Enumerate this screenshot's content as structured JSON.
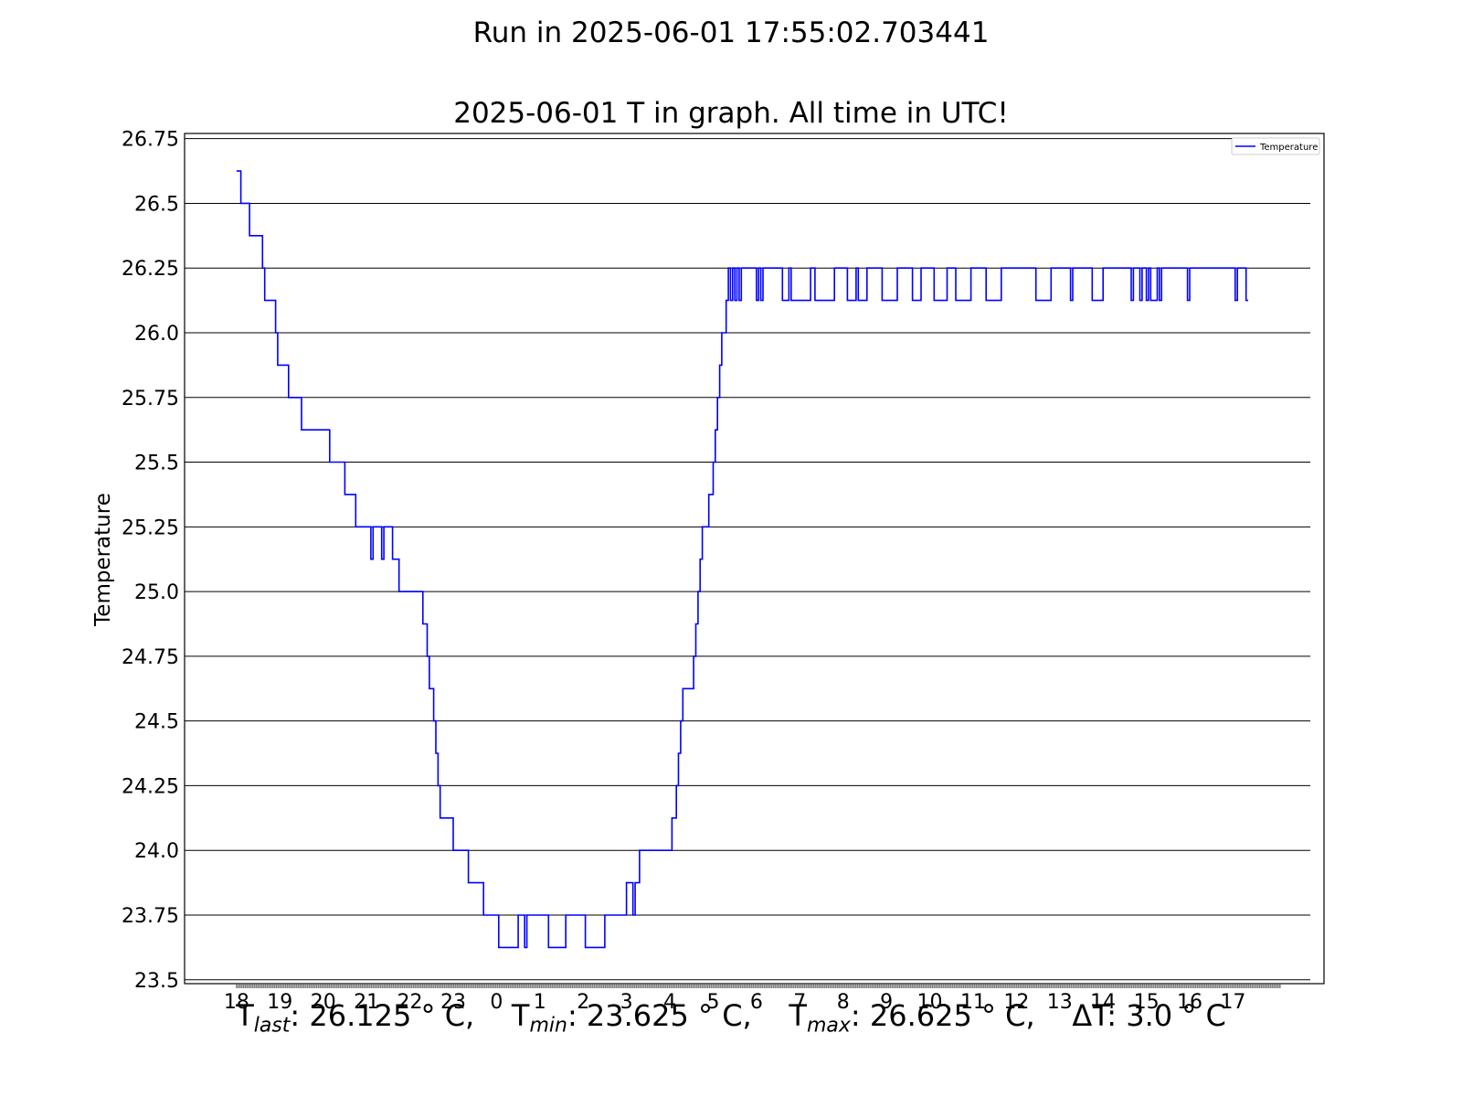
{
  "header": {
    "run_title": "Run in 2025-06-01 17:55:02.703441",
    "graph_title": "2025-06-01 T in graph. All time in UTC!"
  },
  "stats": {
    "t_last_label": "T",
    "t_last_sub": "last",
    "t_last_value": ": 26.125 ° C,",
    "t_min_label": "T",
    "t_min_sub": "min",
    "t_min_value": ": 23.625 ° C,",
    "t_max_label": "T",
    "t_max_sub": "max",
    "t_max_value": ": 26.625 ° C,",
    "delta_text": "ΔT: 3.0 ° C"
  },
  "colors": {
    "line": "#0000ff",
    "grid": "#000000",
    "frame": "#000000"
  },
  "chart_data": {
    "type": "line",
    "ylabel": "Temperature",
    "xlabel": "",
    "ylim": [
      23.485,
      26.77
    ],
    "xlim": [
      -1.2,
      25.1
    ],
    "grid": "horizontal",
    "legend": "top-right",
    "x_tick_values": [
      0,
      1,
      2,
      3,
      4,
      5,
      6,
      7,
      8,
      9,
      10,
      11,
      12,
      13,
      14,
      15,
      16,
      17,
      18,
      19,
      20,
      21,
      22,
      23
    ],
    "x_tick_labels": [
      "18",
      "19",
      "20",
      "21",
      "22",
      "23",
      "0",
      "1",
      "2",
      "3",
      "4",
      "5",
      "6",
      "7",
      "8",
      "9",
      "10",
      "11",
      "12",
      "13",
      "14",
      "15",
      "16",
      "17"
    ],
    "y_ticks": [
      23.5,
      23.75,
      24.0,
      24.25,
      24.5,
      24.75,
      25.0,
      25.25,
      25.5,
      25.75,
      26.0,
      26.25,
      26.5,
      26.75
    ],
    "y_tick_labels": [
      "23.5",
      "23.75",
      "24.0",
      "24.25",
      "24.5",
      "24.75",
      "25.0",
      "25.25",
      "25.5",
      "25.75",
      "26.0",
      "26.25",
      "26.5",
      "26.75"
    ],
    "series": [
      {
        "name": "Temperature",
        "x": [
          0.0,
          0.1,
          0.1,
          0.3,
          0.3,
          0.6,
          0.6,
          0.65,
          0.65,
          0.9,
          0.9,
          0.95,
          0.95,
          1.2,
          1.2,
          1.5,
          1.5,
          2.15,
          2.15,
          2.5,
          2.5,
          2.75,
          2.75,
          3.1,
          3.1,
          3.15,
          3.15,
          3.35,
          3.35,
          3.4,
          3.4,
          3.6,
          3.6,
          3.75,
          3.75,
          4.3,
          4.3,
          4.4,
          4.4,
          4.45,
          4.45,
          4.55,
          4.55,
          4.6,
          4.6,
          4.65,
          4.65,
          4.7,
          4.7,
          5.0,
          5.0,
          5.35,
          5.35,
          5.7,
          5.7,
          6.05,
          6.05,
          6.5,
          6.5,
          6.65,
          6.65,
          6.7,
          6.7,
          7.2,
          7.2,
          7.6,
          7.6,
          8.05,
          8.05,
          8.5,
          8.5,
          9.0,
          9.0,
          9.15,
          9.15,
          9.2,
          9.2,
          9.3,
          9.3,
          10.05,
          10.05,
          10.15,
          10.15,
          10.2,
          10.2,
          10.25,
          10.25,
          10.3,
          10.3,
          10.55,
          10.55,
          10.6,
          10.6,
          10.65,
          10.65,
          10.7,
          10.7,
          10.75,
          10.75,
          10.9,
          10.9,
          11.0,
          11.0,
          11.05,
          11.05,
          11.1,
          11.1,
          11.15,
          11.15,
          11.2,
          11.2,
          11.3,
          11.3,
          11.35,
          11.35,
          11.4,
          11.4,
          11.45,
          11.45,
          11.5,
          11.5,
          11.55,
          11.55,
          11.6,
          11.6,
          11.65,
          11.65,
          12.0,
          12.0,
          12.05,
          12.05,
          12.1,
          12.1,
          12.15,
          12.15,
          12.6,
          12.6,
          12.75,
          12.75,
          12.8,
          12.8,
          13.25,
          13.25,
          13.35,
          13.35,
          13.8,
          13.8,
          14.1,
          14.1,
          14.3,
          14.3,
          14.35,
          14.35,
          14.55,
          14.55,
          14.9,
          14.9,
          15.25,
          15.25,
          15.6,
          15.6,
          15.8,
          15.8,
          16.1,
          16.1,
          16.4,
          16.4,
          16.6,
          16.6,
          16.95,
          16.95,
          17.3,
          17.3,
          17.65,
          17.65,
          18.45,
          18.45,
          18.8,
          18.8,
          19.25,
          19.25,
          19.3,
          19.3,
          19.75,
          19.75,
          20.0,
          20.0,
          20.65,
          20.65,
          20.7,
          20.7,
          20.85,
          20.85,
          20.9,
          20.9,
          21.0,
          21.0,
          21.05,
          21.05,
          21.1,
          21.1,
          21.25,
          21.25,
          21.3,
          21.3,
          21.35,
          21.35,
          21.95,
          21.95,
          22.0,
          22.0,
          23.05,
          23.05,
          23.1,
          23.1,
          23.3,
          23.3,
          23.35
        ],
        "y": [
          26.625,
          26.625,
          26.5,
          26.5,
          26.375,
          26.375,
          26.25,
          26.25,
          26.125,
          26.125,
          26.0,
          26.0,
          25.875,
          25.875,
          25.75,
          25.75,
          25.625,
          25.625,
          25.5,
          25.5,
          25.375,
          25.375,
          25.25,
          25.25,
          25.125,
          25.125,
          25.25,
          25.25,
          25.125,
          25.125,
          25.25,
          25.25,
          25.125,
          25.125,
          25.0,
          25.0,
          24.875,
          24.875,
          24.75,
          24.75,
          24.625,
          24.625,
          24.5,
          24.5,
          24.375,
          24.375,
          24.25,
          24.25,
          24.125,
          24.125,
          24.0,
          24.0,
          23.875,
          23.875,
          23.75,
          23.75,
          23.625,
          23.625,
          23.75,
          23.75,
          23.625,
          23.625,
          23.75,
          23.75,
          23.625,
          23.625,
          23.75,
          23.75,
          23.625,
          23.625,
          23.75,
          23.75,
          23.875,
          23.875,
          23.75,
          23.75,
          23.875,
          23.875,
          24.0,
          24.0,
          24.125,
          24.125,
          24.25,
          24.25,
          24.375,
          24.375,
          24.5,
          24.5,
          24.625,
          24.625,
          24.75,
          24.75,
          24.875,
          24.875,
          25.0,
          25.0,
          25.125,
          25.125,
          25.25,
          25.25,
          25.375,
          25.375,
          25.5,
          25.5,
          25.625,
          25.625,
          25.75,
          25.75,
          25.875,
          25.875,
          26.0,
          26.0,
          26.125,
          26.125,
          26.25,
          26.25,
          26.125,
          26.125,
          26.25,
          26.25,
          26.125,
          26.125,
          26.25,
          26.25,
          26.125,
          26.125,
          26.25,
          26.25,
          26.125,
          26.125,
          26.25,
          26.25,
          26.125,
          26.125,
          26.25,
          26.25,
          26.125,
          26.125,
          26.25,
          26.25,
          26.125,
          26.125,
          26.25,
          26.25,
          26.125,
          26.125,
          26.25,
          26.25,
          26.125,
          26.125,
          26.25,
          26.25,
          26.125,
          26.125,
          26.25,
          26.25,
          26.125,
          26.125,
          26.25,
          26.25,
          26.125,
          26.125,
          26.25,
          26.25,
          26.125,
          26.125,
          26.25,
          26.25,
          26.125,
          26.125,
          26.25,
          26.25,
          26.125,
          26.125,
          26.25,
          26.25,
          26.125,
          26.125,
          26.25,
          26.25,
          26.125,
          26.125,
          26.25,
          26.25,
          26.125,
          26.125,
          26.25,
          26.25,
          26.125,
          26.125,
          26.25,
          26.25,
          26.125,
          26.125,
          26.25,
          26.25,
          26.125,
          26.125,
          26.25,
          26.25,
          26.125,
          26.125,
          26.25,
          26.25,
          26.125,
          26.125,
          26.25,
          26.25,
          26.125,
          26.125,
          26.25,
          26.25,
          26.125,
          26.125,
          26.25,
          26.25,
          26.125,
          26.125
        ]
      }
    ]
  }
}
